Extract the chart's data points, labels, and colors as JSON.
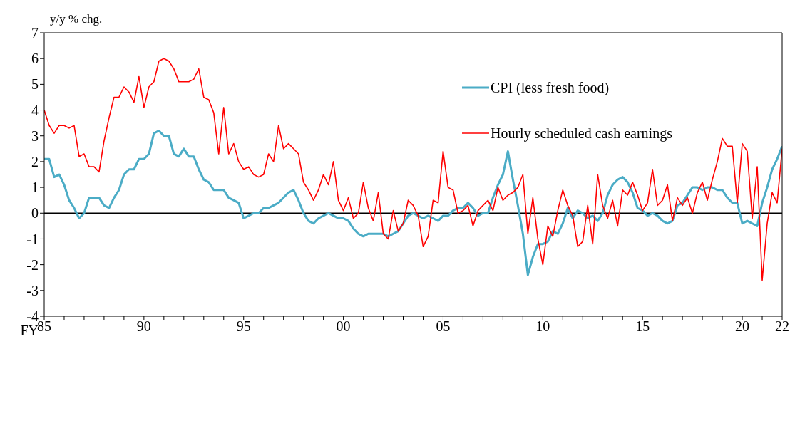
{
  "chart_data": {
    "type": "line",
    "ylabel": "y/y % chg.",
    "xlabel": "FY",
    "x": [
      1985,
      1985.25,
      1985.5,
      1985.75,
      1986,
      1986.25,
      1986.5,
      1986.75,
      1987,
      1987.25,
      1987.5,
      1987.75,
      1988,
      1988.25,
      1988.5,
      1988.75,
      1989,
      1989.25,
      1989.5,
      1989.75,
      1990,
      1990.25,
      1990.5,
      1990.75,
      1991,
      1991.25,
      1991.5,
      1991.75,
      1992,
      1992.25,
      1992.5,
      1992.75,
      1993,
      1993.25,
      1993.5,
      1993.75,
      1994,
      1994.25,
      1994.5,
      1994.75,
      1995,
      1995.25,
      1995.5,
      1995.75,
      1996,
      1996.25,
      1996.5,
      1996.75,
      1997,
      1997.25,
      1997.5,
      1997.75,
      1998,
      1998.25,
      1998.5,
      1998.75,
      1999,
      1999.25,
      1999.5,
      1999.75,
      2000,
      2000.25,
      2000.5,
      2000.75,
      2001,
      2001.25,
      2001.5,
      2001.75,
      2002,
      2002.25,
      2002.5,
      2002.75,
      2003,
      2003.25,
      2003.5,
      2003.75,
      2004,
      2004.25,
      2004.5,
      2004.75,
      2005,
      2005.25,
      2005.5,
      2005.75,
      2006,
      2006.25,
      2006.5,
      2006.75,
      2007,
      2007.25,
      2007.5,
      2007.75,
      2008,
      2008.25,
      2008.5,
      2008.75,
      2009,
      2009.25,
      2009.5,
      2009.75,
      2010,
      2010.25,
      2010.5,
      2010.75,
      2011,
      2011.25,
      2011.5,
      2011.75,
      2012,
      2012.25,
      2012.5,
      2012.75,
      2013,
      2013.25,
      2013.5,
      2013.75,
      2014,
      2014.25,
      2014.5,
      2014.75,
      2015,
      2015.25,
      2015.5,
      2015.75,
      2016,
      2016.25,
      2016.5,
      2016.75,
      2017,
      2017.25,
      2017.5,
      2017.75,
      2018,
      2018.25,
      2018.5,
      2018.75,
      2019,
      2019.25,
      2019.5,
      2019.75,
      2020,
      2020.25,
      2020.5,
      2020.75,
      2021,
      2021.25,
      2021.5,
      2021.75,
      2022
    ],
    "series": [
      {
        "name": "CPI (less fresh food)",
        "color": "#4bacc6",
        "values": [
          2.1,
          2.1,
          1.4,
          1.5,
          1.1,
          0.5,
          0.2,
          -0.2,
          0,
          0.6,
          0.6,
          0.6,
          0.3,
          0.2,
          0.6,
          0.9,
          1.5,
          1.7,
          1.7,
          2.1,
          2.1,
          2.3,
          3.1,
          3.2,
          3.0,
          3.0,
          2.3,
          2.2,
          2.5,
          2.2,
          2.2,
          1.7,
          1.3,
          1.2,
          0.9,
          0.9,
          0.9,
          0.6,
          0.5,
          0.4,
          -0.2,
          -0.1,
          0,
          0,
          0.2,
          0.2,
          0.3,
          0.4,
          0.6,
          0.8,
          0.9,
          0.5,
          0,
          -0.3,
          -0.4,
          -0.2,
          -0.1,
          0,
          -0.1,
          -0.2,
          -0.2,
          -0.3,
          -0.6,
          -0.8,
          -0.9,
          -0.8,
          -0.8,
          -0.8,
          -0.8,
          -0.9,
          -0.8,
          -0.7,
          -0.4,
          -0.1,
          0,
          -0.1,
          -0.2,
          -0.1,
          -0.2,
          -0.3,
          -0.1,
          -0.1,
          0.1,
          0.2,
          0.2,
          0.4,
          0.2,
          -0.1,
          0,
          0,
          0.6,
          1.1,
          1.5,
          2.4,
          1.3,
          0.3,
          -0.8,
          -2.4,
          -1.7,
          -1.2,
          -1.2,
          -1.1,
          -0.7,
          -0.8,
          -0.4,
          0.2,
          -0.2,
          0.1,
          0,
          -0.2,
          -0.1,
          -0.3,
          0,
          0.7,
          1.1,
          1.3,
          1.4,
          1.2,
          0.8,
          0.2,
          0.1,
          -0.1,
          0,
          -0.1,
          -0.3,
          -0.4,
          -0.3,
          0.3,
          0.4,
          0.7,
          1.0,
          1.0,
          0.9,
          1.0,
          1.0,
          0.9,
          0.9,
          0.6,
          0.4,
          0.4,
          -0.4,
          -0.3,
          -0.4,
          -0.5,
          0.4,
          1.0,
          1.7,
          2.1,
          2.6
        ]
      },
      {
        "name": "Hourly scheduled cash earnings",
        "color": "#ff0000",
        "values": [
          4.0,
          3.4,
          3.1,
          3.4,
          3.4,
          3.3,
          3.4,
          2.2,
          2.3,
          1.8,
          1.8,
          1.6,
          2.8,
          3.7,
          4.5,
          4.5,
          4.9,
          4.7,
          4.3,
          5.3,
          4.1,
          4.9,
          5.1,
          5.9,
          6.0,
          5.9,
          5.6,
          5.1,
          5.1,
          5.1,
          5.2,
          5.6,
          4.5,
          4.4,
          3.9,
          2.3,
          4.1,
          2.3,
          2.7,
          2.0,
          1.7,
          1.8,
          1.5,
          1.4,
          1.5,
          2.3,
          2.0,
          3.4,
          2.5,
          2.7,
          2.5,
          2.3,
          1.2,
          0.9,
          0.5,
          0.9,
          1.5,
          1.1,
          2.0,
          0.5,
          0.1,
          0.6,
          -0.2,
          0,
          1.2,
          0.2,
          -0.3,
          0.8,
          -0.8,
          -1.0,
          0.1,
          -0.7,
          -0.4,
          0.5,
          0.3,
          -0.1,
          -1.3,
          -0.9,
          0.5,
          0.4,
          2.4,
          1.0,
          0.9,
          0,
          0.1,
          0.3,
          -0.5,
          0.1,
          0.3,
          0.5,
          0.1,
          1.0,
          0.5,
          0.7,
          0.8,
          1.0,
          1.5,
          -0.8,
          0.6,
          -1.0,
          -2.0,
          -0.5,
          -0.9,
          0.1,
          0.9,
          0.3,
          -0.1,
          -1.3,
          -1.1,
          0.3,
          -1.2,
          1.5,
          0.3,
          -0.2,
          0.5,
          -0.5,
          0.9,
          0.7,
          1.2,
          0.7,
          0.1,
          0.4,
          1.7,
          0.3,
          0.5,
          1.1,
          -0.3,
          0.6,
          0.3,
          0.6,
          0,
          0.8,
          1.2,
          0.5,
          1.3,
          2.0,
          2.9,
          2.6,
          2.6,
          0.4,
          2.7,
          2.4,
          -0.2,
          1.8,
          -2.6,
          -0.4,
          0.8,
          0.4,
          2.5
        ]
      }
    ],
    "xlim": [
      1985,
      2022
    ],
    "xticks": [
      {
        "value": 1985,
        "label": "85"
      },
      {
        "value": 1986,
        "label": null
      },
      {
        "value": 1987,
        "label": null
      },
      {
        "value": 1988,
        "label": null
      },
      {
        "value": 1989,
        "label": null
      },
      {
        "value": 1990,
        "label": "90"
      },
      {
        "value": 1991,
        "label": null
      },
      {
        "value": 1992,
        "label": null
      },
      {
        "value": 1993,
        "label": null
      },
      {
        "value": 1994,
        "label": null
      },
      {
        "value": 1995,
        "label": "95"
      },
      {
        "value": 1996,
        "label": null
      },
      {
        "value": 1997,
        "label": null
      },
      {
        "value": 1998,
        "label": null
      },
      {
        "value": 1999,
        "label": null
      },
      {
        "value": 2000,
        "label": "00"
      },
      {
        "value": 2001,
        "label": null
      },
      {
        "value": 2002,
        "label": null
      },
      {
        "value": 2003,
        "label": null
      },
      {
        "value": 2004,
        "label": null
      },
      {
        "value": 2005,
        "label": "05"
      },
      {
        "value": 2006,
        "label": null
      },
      {
        "value": 2007,
        "label": null
      },
      {
        "value": 2008,
        "label": null
      },
      {
        "value": 2009,
        "label": null
      },
      {
        "value": 2010,
        "label": "10"
      },
      {
        "value": 2011,
        "label": null
      },
      {
        "value": 2012,
        "label": null
      },
      {
        "value": 2013,
        "label": null
      },
      {
        "value": 2014,
        "label": null
      },
      {
        "value": 2015,
        "label": "15"
      },
      {
        "value": 2016,
        "label": null
      },
      {
        "value": 2017,
        "label": null
      },
      {
        "value": 2018,
        "label": null
      },
      {
        "value": 2019,
        "label": null
      },
      {
        "value": 2020,
        "label": "20"
      },
      {
        "value": 2021,
        "label": null
      },
      {
        "value": 2022,
        "label": "22"
      }
    ],
    "ylim": [
      -4,
      7
    ],
    "yticks": [
      -4,
      -3,
      -2,
      -1,
      0,
      1,
      2,
      3,
      4,
      5,
      6,
      7
    ],
    "ref_lines": [
      {
        "axis": "y",
        "value": 0,
        "color": "#000000"
      }
    ],
    "grid": false,
    "legend": "top right",
    "marker": "none",
    "line_style": "solid"
  }
}
